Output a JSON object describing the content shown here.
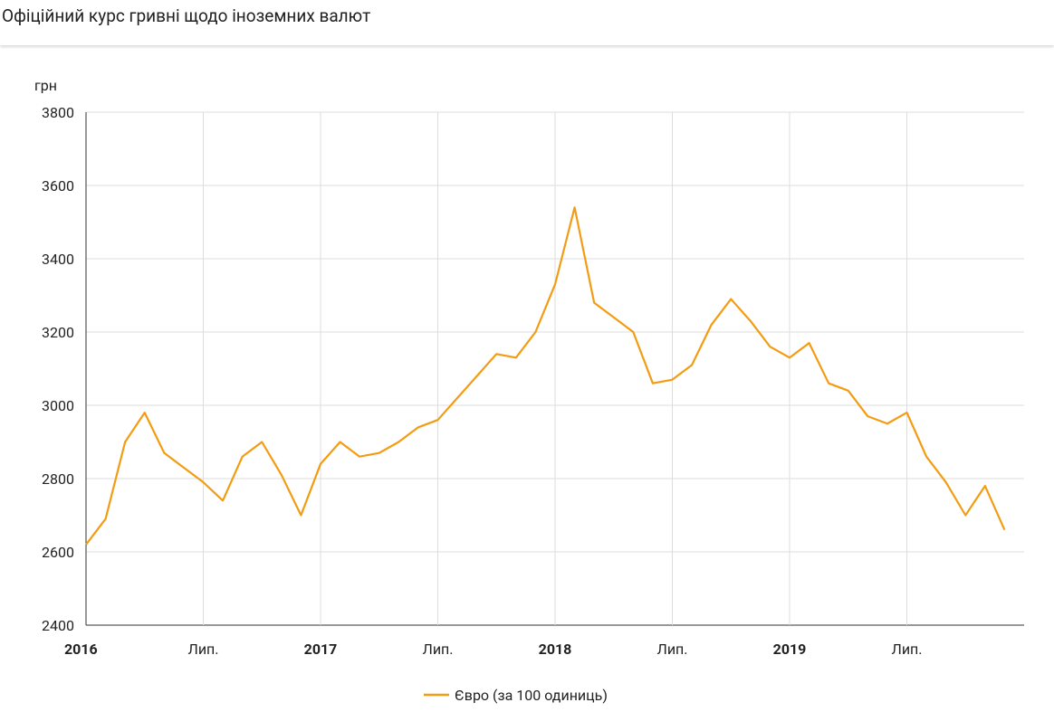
{
  "chart_data": {
    "type": "line",
    "title": "Офіційний курс гривні щодо іноземних валют",
    "y_label": "грн",
    "x": [
      "2016-01",
      "2016-02",
      "2016-03",
      "2016-04",
      "2016-05",
      "2016-06",
      "2016-07",
      "2016-08",
      "2016-09",
      "2016-10",
      "2016-11",
      "2016-12",
      "2017-01",
      "2017-02",
      "2017-03",
      "2017-04",
      "2017-05",
      "2017-06",
      "2017-07",
      "2017-08",
      "2017-09",
      "2017-10",
      "2017-11",
      "2017-12",
      "2018-01",
      "2018-02",
      "2018-03",
      "2018-04",
      "2018-05",
      "2018-06",
      "2018-07",
      "2018-08",
      "2018-09",
      "2018-10",
      "2018-11",
      "2018-12",
      "2019-01",
      "2019-02",
      "2019-03",
      "2019-04",
      "2019-05",
      "2019-06",
      "2019-07",
      "2019-08",
      "2019-09",
      "2019-10",
      "2019-11",
      "2019-12"
    ],
    "series": [
      {
        "name": "Євро (за 100 одиниць)",
        "color": "#f39c12",
        "values": [
          2620,
          2690,
          2900,
          2980,
          2870,
          2830,
          2790,
          2740,
          2860,
          2900,
          2810,
          2700,
          2840,
          2900,
          2860,
          2870,
          2900,
          2940,
          2960,
          3020,
          3080,
          3140,
          3130,
          3200,
          3330,
          3540,
          3280,
          3240,
          3200,
          3060,
          3070,
          3110,
          3220,
          3290,
          3230,
          3160,
          3130,
          3170,
          3060,
          3040,
          2970,
          2950,
          2980,
          2860,
          2790,
          2700,
          2780,
          2660
        ]
      }
    ],
    "xlim": [
      "2016-01",
      "2020-01"
    ],
    "xticks": [
      {
        "value": "2016-01",
        "label": "2016"
      },
      {
        "value": "2016-07",
        "label": "Лип."
      },
      {
        "value": "2017-01",
        "label": "2017"
      },
      {
        "value": "2017-07",
        "label": "Лип."
      },
      {
        "value": "2018-01",
        "label": "2018"
      },
      {
        "value": "2018-07",
        "label": "Лип."
      },
      {
        "value": "2019-01",
        "label": "2019"
      },
      {
        "value": "2019-07",
        "label": "Лип."
      }
    ],
    "ylim": [
      2400,
      3800
    ],
    "yticks": [
      2400,
      2600,
      2800,
      3000,
      3200,
      3400,
      3600,
      3800
    ],
    "grid": true,
    "legend": "bottom"
  }
}
